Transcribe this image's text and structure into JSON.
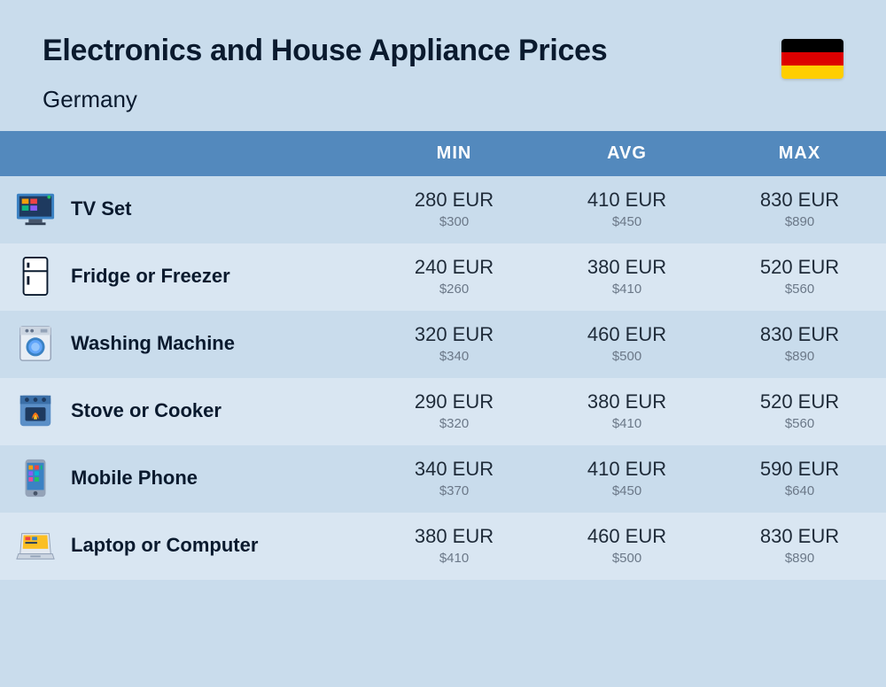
{
  "header": {
    "title": "Electronics and House Appliance Prices",
    "subtitle": "Germany",
    "flag_colors": [
      "#000000",
      "#dd0000",
      "#ffce00"
    ]
  },
  "table": {
    "header_bg": "#5389bd",
    "header_text_color": "#ffffff",
    "row_even_bg": "#c9dcec",
    "row_odd_bg": "#d9e6f2",
    "columns": [
      "MIN",
      "AVG",
      "MAX"
    ],
    "rows": [
      {
        "icon": "tv-icon",
        "label": "TV Set",
        "min_eur": "280 EUR",
        "min_usd": "$300",
        "avg_eur": "410 EUR",
        "avg_usd": "$450",
        "max_eur": "830 EUR",
        "max_usd": "$890"
      },
      {
        "icon": "fridge-icon",
        "label": "Fridge or Freezer",
        "min_eur": "240 EUR",
        "min_usd": "$260",
        "avg_eur": "380 EUR",
        "avg_usd": "$410",
        "max_eur": "520 EUR",
        "max_usd": "$560"
      },
      {
        "icon": "washing-machine-icon",
        "label": "Washing Machine",
        "min_eur": "320 EUR",
        "min_usd": "$340",
        "avg_eur": "460 EUR",
        "avg_usd": "$500",
        "max_eur": "830 EUR",
        "max_usd": "$890"
      },
      {
        "icon": "stove-icon",
        "label": "Stove or Cooker",
        "min_eur": "290 EUR",
        "min_usd": "$320",
        "avg_eur": "380 EUR",
        "avg_usd": "$410",
        "max_eur": "520 EUR",
        "max_usd": "$560"
      },
      {
        "icon": "phone-icon",
        "label": "Mobile Phone",
        "min_eur": "340 EUR",
        "min_usd": "$370",
        "avg_eur": "410 EUR",
        "avg_usd": "$450",
        "max_eur": "590 EUR",
        "max_usd": "$640"
      },
      {
        "icon": "laptop-icon",
        "label": "Laptop or Computer",
        "min_eur": "380 EUR",
        "min_usd": "$410",
        "avg_eur": "460 EUR",
        "avg_usd": "$500",
        "max_eur": "830 EUR",
        "max_usd": "$890"
      }
    ]
  },
  "styling": {
    "page_bg": "#c9dcec",
    "title_color": "#0a1a2e",
    "title_fontsize": 34,
    "subtitle_fontsize": 26,
    "label_fontsize": 22,
    "value_fontsize": 22,
    "subvalue_fontsize": 15,
    "subvalue_color": "#6b7888"
  }
}
